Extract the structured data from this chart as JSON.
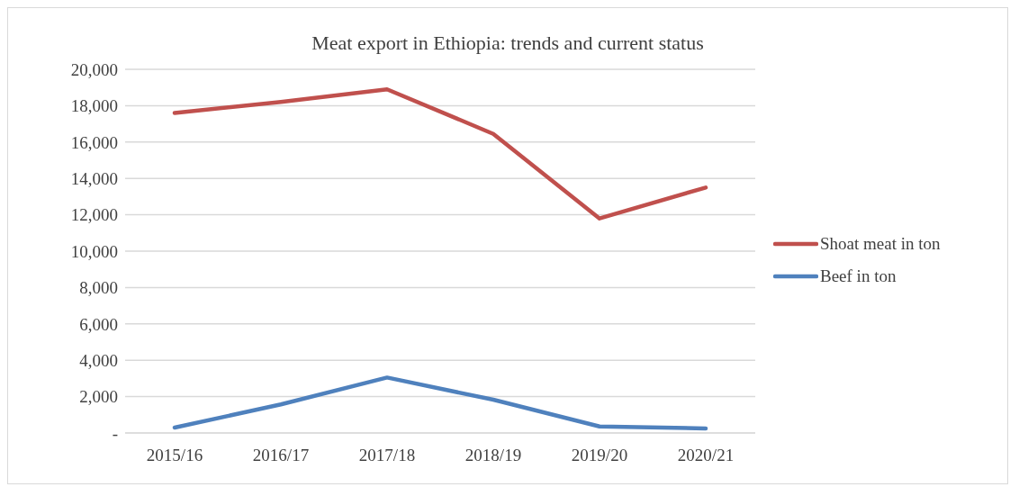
{
  "chart_data": {
    "type": "line",
    "title": "Meat export in Ethiopia: trends and current status",
    "categories": [
      "2015/16",
      "2016/17",
      "2017/18",
      "2018/19",
      "2019/20",
      "2020/21"
    ],
    "series": [
      {
        "name": "Shoat meat in ton",
        "color": "#c0504d",
        "values": [
          17600,
          18200,
          18900,
          16450,
          11800,
          13500
        ]
      },
      {
        "name": "Beef in ton",
        "color": "#4f81bd",
        "values": [
          300,
          1570,
          3050,
          1830,
          360,
          250
        ]
      }
    ],
    "ylim": [
      0,
      20000
    ],
    "yticks": [
      {
        "value": 0,
        "label": "-"
      },
      {
        "value": 2000,
        "label": "2,000"
      },
      {
        "value": 4000,
        "label": "4,000"
      },
      {
        "value": 6000,
        "label": "6,000"
      },
      {
        "value": 8000,
        "label": "8,000"
      },
      {
        "value": 10000,
        "label": "10,000"
      },
      {
        "value": 12000,
        "label": "12,000"
      },
      {
        "value": 14000,
        "label": "14,000"
      },
      {
        "value": 16000,
        "label": "16,000"
      },
      {
        "value": 18000,
        "label": "18,000"
      },
      {
        "value": 20000,
        "label": "20,000"
      }
    ],
    "grid": "y",
    "legend": "right",
    "marker": "none",
    "line_style": "solid"
  }
}
